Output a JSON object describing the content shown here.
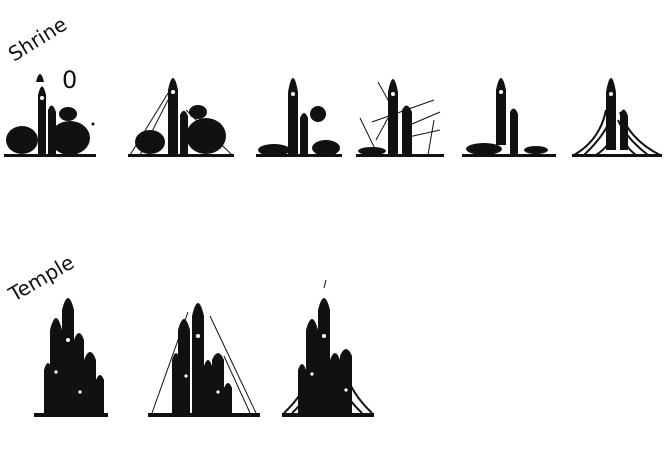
{
  "sections": [
    {
      "title": "Shrine",
      "sketch_count": 6
    },
    {
      "title": "Temple",
      "sketch_count": 3
    }
  ],
  "annotation": "0",
  "colors": {
    "background": "#ffffff",
    "ink": "#111111"
  }
}
